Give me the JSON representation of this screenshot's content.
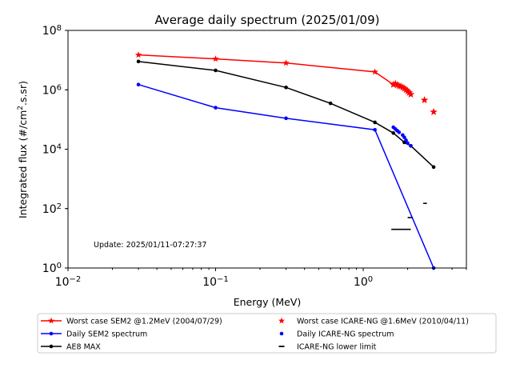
{
  "chart_data": {
    "type": "line",
    "title": "Average daily spectrum (2025/01/09)",
    "xlabel": "Energy (MeV)",
    "ylabel": "Integrated flux (#/cm².s.sr)",
    "x_scale": "log",
    "y_scale": "log",
    "xlim": [
      0.01,
      5
    ],
    "ylim": [
      1,
      100000000
    ],
    "x_ticks": [
      {
        "value": 0.01,
        "base": "10",
        "exp": "−2"
      },
      {
        "value": 0.1,
        "base": "10",
        "exp": "−1"
      },
      {
        "value": 1,
        "base": "10",
        "exp": "0"
      }
    ],
    "y_ticks": [
      {
        "value": 1,
        "base": "10",
        "exp": "0"
      },
      {
        "value": 100,
        "base": "10",
        "exp": "2"
      },
      {
        "value": 10000,
        "base": "10",
        "exp": "4"
      },
      {
        "value": 1000000,
        "base": "10",
        "exp": "6"
      },
      {
        "value": 100000000,
        "base": "10",
        "exp": "8"
      }
    ],
    "annotation": "Update: 2025/01/11-07:27:37",
    "series": [
      {
        "name": "Worst case SEM2 @1.2MeV (2004/07/29)",
        "color": "#ff0000",
        "style": "line",
        "marker": "star",
        "x": [
          0.03,
          0.1,
          0.3,
          1.2,
          1.6
        ],
        "y": [
          15000000,
          11000000,
          8000000,
          4000000,
          1500000
        ]
      },
      {
        "name": "Daily SEM2 spectrum",
        "color": "#0000ff",
        "style": "line",
        "marker": "dot",
        "x": [
          0.03,
          0.1,
          0.3,
          1.2,
          3.0
        ],
        "y": [
          1500000,
          250000,
          110000,
          45000,
          1
        ]
      },
      {
        "name": "AE8 MAX",
        "color": "#000000",
        "style": "line",
        "marker": "dot",
        "x": [
          0.03,
          0.1,
          0.3,
          0.6,
          1.2,
          1.6,
          1.9,
          2.1,
          3.0
        ],
        "y": [
          9000000,
          4500000,
          1200000,
          350000,
          80000,
          35000,
          17000,
          13000,
          2500
        ]
      },
      {
        "name": "Worst case ICARE-NG @1.6MeV (2010/04/11)",
        "color": "#ff0000",
        "style": "points",
        "marker": "star",
        "x": [
          1.6,
          1.65,
          1.7,
          1.75,
          1.8,
          1.85,
          1.9,
          1.95,
          2.0,
          2.05,
          2.1,
          2.6,
          3.0
        ],
        "y": [
          1500000,
          1600000,
          1450000,
          1350000,
          1300000,
          1200000,
          1100000,
          1000000,
          900000,
          800000,
          700000,
          450000,
          180000
        ]
      },
      {
        "name": "Daily ICARE-NG spectrum",
        "color": "#0000ff",
        "style": "points",
        "marker": "dot",
        "x": [
          1.6,
          1.65,
          1.7,
          1.75,
          1.85,
          1.9,
          1.95,
          2.0,
          2.1
        ],
        "y": [
          55000,
          48000,
          42000,
          37000,
          30000,
          25000,
          20000,
          16000,
          13000
        ]
      },
      {
        "name": "ICARE-NG lower limit",
        "color": "#000000",
        "style": "segments",
        "marker": "dash",
        "segments": [
          {
            "x1": 1.55,
            "x2": 2.1,
            "y": 20
          },
          {
            "x1": 2.0,
            "x2": 2.15,
            "y": 50
          },
          {
            "x1": 2.55,
            "x2": 2.7,
            "y": 150
          }
        ]
      }
    ],
    "legend": {
      "placement": "bottom",
      "columns": [
        [
          "Worst case SEM2 @1.2MeV (2004/07/29)",
          "Daily SEM2 spectrum",
          "AE8 MAX"
        ],
        [
          "Worst case ICARE-NG @1.6MeV (2010/04/11)",
          "Daily ICARE-NG spectrum",
          "ICARE-NG lower limit"
        ]
      ]
    }
  }
}
